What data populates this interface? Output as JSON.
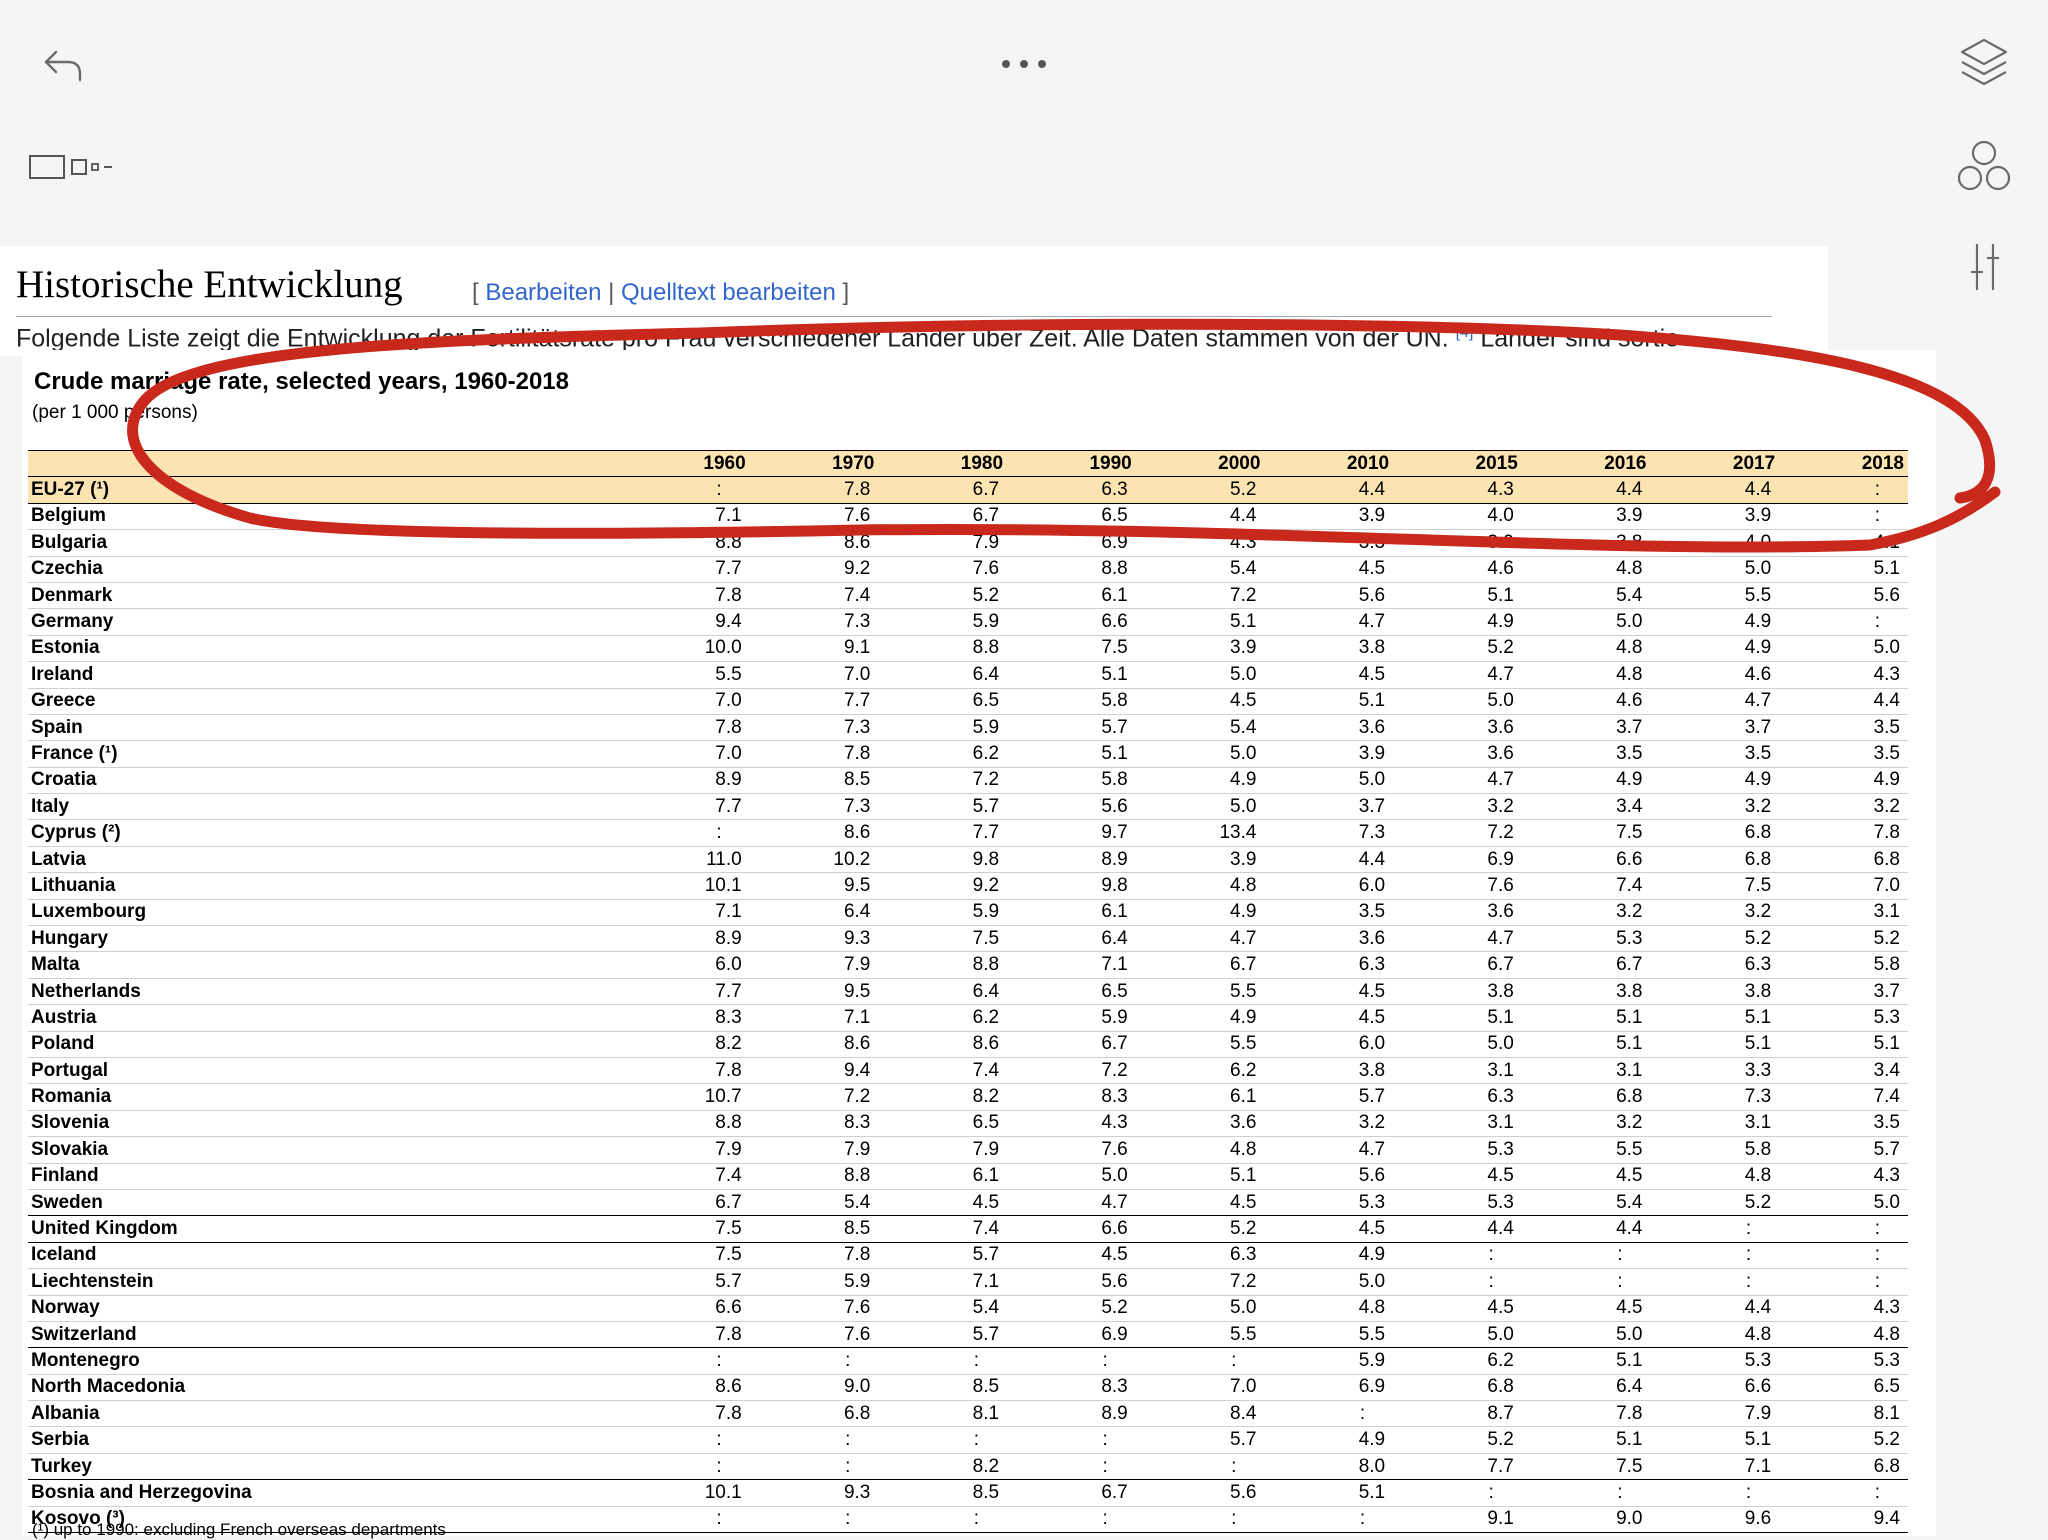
{
  "wiki": {
    "heading": "Historische Entwicklung",
    "edit_open": "[",
    "edit_link": "Bearbeiten",
    "edit_divider": " | ",
    "source_edit_link": "Quelltext bearbeiten",
    "edit_close": "]",
    "intro_text": "Folgende Liste zeigt die Entwicklung der Fertilitätsrate pro Frau verschiedener Länder über Zeit. Alle Daten stammen von der UN.",
    "ref": "[4]",
    "intro_tail": " Länder sind sortie"
  },
  "table": {
    "title": "Crude marriage rate, selected years,  1960-2018",
    "subtitle": "(per 1 000 persons)",
    "years": [
      "1960",
      "1970",
      "1980",
      "1990",
      "2000",
      "2010",
      "2015",
      "2016",
      "2017",
      "2018"
    ],
    "rows": [
      {
        "country": "EU-27 (¹)",
        "values": [
          ":",
          "7.8",
          "6.7",
          "6.3",
          "5.2",
          "4.4",
          "4.3",
          "4.4",
          "4.4",
          ":"
        ]
      },
      {
        "country": "Belgium",
        "values": [
          "7.1",
          "7.6",
          "6.7",
          "6.5",
          "4.4",
          "3.9",
          "4.0",
          "3.9",
          "3.9",
          ":"
        ]
      },
      {
        "country": "Bulgaria",
        "values": [
          "8.8",
          "8.6",
          "7.9",
          "6.9",
          "4.3",
          "3.3",
          "3.9",
          "3.8",
          "4.0",
          "4.1"
        ]
      },
      {
        "country": "Czechia",
        "values": [
          "7.7",
          "9.2",
          "7.6",
          "8.8",
          "5.4",
          "4.5",
          "4.6",
          "4.8",
          "5.0",
          "5.1"
        ]
      },
      {
        "country": "Denmark",
        "values": [
          "7.8",
          "7.4",
          "5.2",
          "6.1",
          "7.2",
          "5.6",
          "5.1",
          "5.4",
          "5.5",
          "5.6"
        ]
      },
      {
        "country": "Germany",
        "values": [
          "9.4",
          "7.3",
          "5.9",
          "6.6",
          "5.1",
          "4.7",
          "4.9",
          "5.0",
          "4.9",
          ":"
        ]
      },
      {
        "country": "Estonia",
        "values": [
          "10.0",
          "9.1",
          "8.8",
          "7.5",
          "3.9",
          "3.8",
          "5.2",
          "4.8",
          "4.9",
          "5.0"
        ]
      },
      {
        "country": "Ireland",
        "values": [
          "5.5",
          "7.0",
          "6.4",
          "5.1",
          "5.0",
          "4.5",
          "4.7",
          "4.8",
          "4.6",
          "4.3"
        ]
      },
      {
        "country": "Greece",
        "values": [
          "7.0",
          "7.7",
          "6.5",
          "5.8",
          "4.5",
          "5.1",
          "5.0",
          "4.6",
          "4.7",
          "4.4"
        ]
      },
      {
        "country": "Spain",
        "values": [
          "7.8",
          "7.3",
          "5.9",
          "5.7",
          "5.4",
          "3.6",
          "3.6",
          "3.7",
          "3.7",
          "3.5"
        ]
      },
      {
        "country": "France (¹)",
        "values": [
          "7.0",
          "7.8",
          "6.2",
          "5.1",
          "5.0",
          "3.9",
          "3.6",
          "3.5",
          "3.5",
          "3.5"
        ]
      },
      {
        "country": "Croatia",
        "values": [
          "8.9",
          "8.5",
          "7.2",
          "5.8",
          "4.9",
          "5.0",
          "4.7",
          "4.9",
          "4.9",
          "4.9"
        ]
      },
      {
        "country": "Italy",
        "values": [
          "7.7",
          "7.3",
          "5.7",
          "5.6",
          "5.0",
          "3.7",
          "3.2",
          "3.4",
          "3.2",
          "3.2"
        ]
      },
      {
        "country": "Cyprus (²)",
        "values": [
          ":",
          "8.6",
          "7.7",
          "9.7",
          "13.4",
          "7.3",
          "7.2",
          "7.5",
          "6.8",
          "7.8"
        ]
      },
      {
        "country": "Latvia",
        "values": [
          "11.0",
          "10.2",
          "9.8",
          "8.9",
          "3.9",
          "4.4",
          "6.9",
          "6.6",
          "6.8",
          "6.8"
        ]
      },
      {
        "country": "Lithuania",
        "values": [
          "10.1",
          "9.5",
          "9.2",
          "9.8",
          "4.8",
          "6.0",
          "7.6",
          "7.4",
          "7.5",
          "7.0"
        ]
      },
      {
        "country": "Luxembourg",
        "values": [
          "7.1",
          "6.4",
          "5.9",
          "6.1",
          "4.9",
          "3.5",
          "3.6",
          "3.2",
          "3.2",
          "3.1"
        ]
      },
      {
        "country": "Hungary",
        "values": [
          "8.9",
          "9.3",
          "7.5",
          "6.4",
          "4.7",
          "3.6",
          "4.7",
          "5.3",
          "5.2",
          "5.2"
        ]
      },
      {
        "country": "Malta",
        "values": [
          "6.0",
          "7.9",
          "8.8",
          "7.1",
          "6.7",
          "6.3",
          "6.7",
          "6.7",
          "6.3",
          "5.8"
        ]
      },
      {
        "country": "Netherlands",
        "values": [
          "7.7",
          "9.5",
          "6.4",
          "6.5",
          "5.5",
          "4.5",
          "3.8",
          "3.8",
          "3.8",
          "3.7"
        ]
      },
      {
        "country": "Austria",
        "values": [
          "8.3",
          "7.1",
          "6.2",
          "5.9",
          "4.9",
          "4.5",
          "5.1",
          "5.1",
          "5.1",
          "5.3"
        ]
      },
      {
        "country": "Poland",
        "values": [
          "8.2",
          "8.6",
          "8.6",
          "6.7",
          "5.5",
          "6.0",
          "5.0",
          "5.1",
          "5.1",
          "5.1"
        ]
      },
      {
        "country": "Portugal",
        "values": [
          "7.8",
          "9.4",
          "7.4",
          "7.2",
          "6.2",
          "3.8",
          "3.1",
          "3.1",
          "3.3",
          "3.4"
        ]
      },
      {
        "country": "Romania",
        "values": [
          "10.7",
          "7.2",
          "8.2",
          "8.3",
          "6.1",
          "5.7",
          "6.3",
          "6.8",
          "7.3",
          "7.4"
        ]
      },
      {
        "country": "Slovenia",
        "values": [
          "8.8",
          "8.3",
          "6.5",
          "4.3",
          "3.6",
          "3.2",
          "3.1",
          "3.2",
          "3.1",
          "3.5"
        ]
      },
      {
        "country": "Slovakia",
        "values": [
          "7.9",
          "7.9",
          "7.9",
          "7.6",
          "4.8",
          "4.7",
          "5.3",
          "5.5",
          "5.8",
          "5.7"
        ]
      },
      {
        "country": "Finland",
        "values": [
          "7.4",
          "8.8",
          "6.1",
          "5.0",
          "5.1",
          "5.6",
          "4.5",
          "4.5",
          "4.8",
          "4.3"
        ]
      },
      {
        "country": "Sweden",
        "values": [
          "6.7",
          "5.4",
          "4.5",
          "4.7",
          "4.5",
          "5.3",
          "5.3",
          "5.4",
          "5.2",
          "5.0"
        ]
      },
      {
        "country": "United Kingdom",
        "values": [
          "7.5",
          "8.5",
          "7.4",
          "6.6",
          "5.2",
          "4.5",
          "4.4",
          "4.4",
          ":",
          ":"
        ]
      },
      {
        "country": "Iceland",
        "values": [
          "7.5",
          "7.8",
          "5.7",
          "4.5",
          "6.3",
          "4.9",
          ":",
          ":",
          ":",
          ":"
        ]
      },
      {
        "country": "Liechtenstein",
        "values": [
          "5.7",
          "5.9",
          "7.1",
          "5.6",
          "7.2",
          "5.0",
          ":",
          ":",
          ":",
          ":"
        ]
      },
      {
        "country": "Norway",
        "values": [
          "6.6",
          "7.6",
          "5.4",
          "5.2",
          "5.0",
          "4.8",
          "4.5",
          "4.5",
          "4.4",
          "4.3"
        ]
      },
      {
        "country": "Switzerland",
        "values": [
          "7.8",
          "7.6",
          "5.7",
          "6.9",
          "5.5",
          "5.5",
          "5.0",
          "5.0",
          "4.8",
          "4.8"
        ]
      },
      {
        "country": "Montenegro",
        "values": [
          ":",
          ":",
          ":",
          ":",
          ":",
          "5.9",
          "6.2",
          "5.1",
          "5.3",
          "5.3"
        ]
      },
      {
        "country": "North Macedonia",
        "values": [
          "8.6",
          "9.0",
          "8.5",
          "8.3",
          "7.0",
          "6.9",
          "6.8",
          "6.4",
          "6.6",
          "6.5"
        ]
      },
      {
        "country": "Albania",
        "values": [
          "7.8",
          "6.8",
          "8.1",
          "8.9",
          "8.4",
          ":",
          "8.7",
          "7.8",
          "7.9",
          "8.1"
        ]
      },
      {
        "country": "Serbia",
        "values": [
          ":",
          ":",
          ":",
          ":",
          "5.7",
          "4.9",
          "5.2",
          "5.1",
          "5.1",
          "5.2"
        ]
      },
      {
        "country": "Turkey",
        "values": [
          ":",
          ":",
          "8.2",
          ":",
          ":",
          "8.0",
          "7.7",
          "7.5",
          "7.1",
          "6.8"
        ]
      },
      {
        "country": "Bosnia and Herzegovina",
        "values": [
          "10.1",
          "9.3",
          "8.5",
          "6.7",
          "5.6",
          "5.1",
          ":",
          ":",
          ":",
          ":"
        ]
      },
      {
        "country": "Kosovo (³)",
        "values": [
          ":",
          ":",
          ":",
          ":",
          ":",
          ":",
          "9.1",
          "9.0",
          "9.6",
          "9.4"
        ]
      }
    ],
    "footnote": "(¹) up to 1990: excluding French overseas departments"
  },
  "icons": {
    "back": "undo-arrow-icon",
    "more": "more-dots-icon",
    "layers": "layers-icon",
    "pages": "page-thumbnails-icon",
    "shapes": "shapes-icon",
    "adjust": "sliders-icon"
  },
  "colors": {
    "annotation_red": "#c9291c",
    "header_fill": "#fbe3b2",
    "link_blue": "#3366cc"
  }
}
